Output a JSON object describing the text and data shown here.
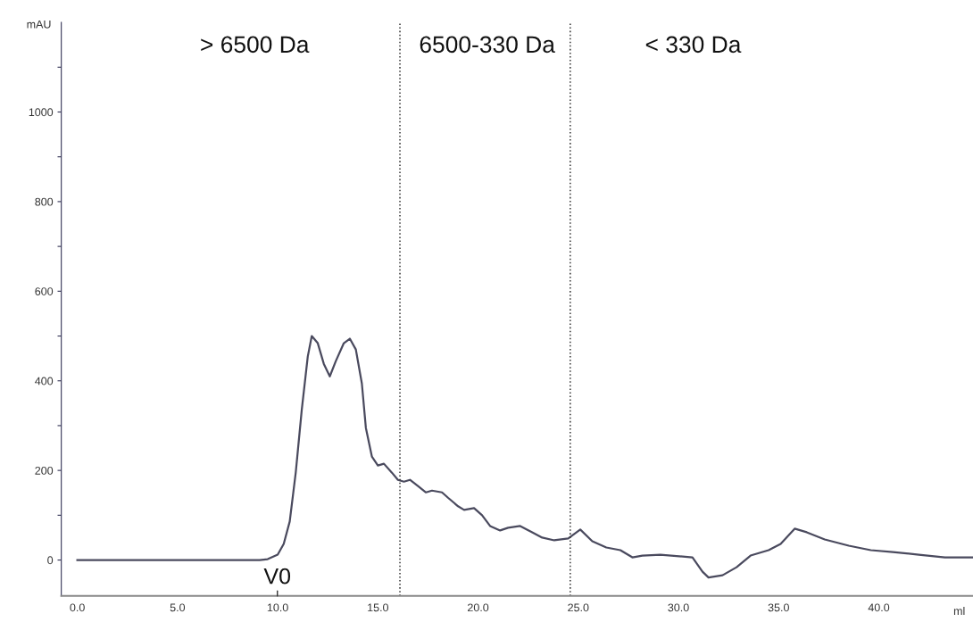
{
  "chart_data": {
    "type": "line",
    "xlabel": "ml",
    "ylabel": "mAU",
    "xlim": [
      -0.8,
      44.7
    ],
    "ylim": [
      -80,
      1200
    ],
    "xticks": [
      {
        "value": 0,
        "label": "0.0"
      },
      {
        "value": 5,
        "label": "5.0"
      },
      {
        "value": 10,
        "label": "10.0"
      },
      {
        "value": 15,
        "label": "15.0"
      },
      {
        "value": 20,
        "label": "20.0"
      },
      {
        "value": 25,
        "label": "25.0"
      },
      {
        "value": 30,
        "label": "30.0"
      },
      {
        "value": 35,
        "label": "35.0"
      },
      {
        "value": 40,
        "label": "40.0"
      }
    ],
    "yticks": [
      0,
      {
        "value": 100,
        "label": null
      },
      200,
      {
        "value": 300,
        "label": null
      },
      400,
      {
        "value": 500,
        "label": null
      },
      600,
      {
        "value": 700,
        "label": null
      },
      800,
      {
        "value": 900,
        "label": null
      },
      1000,
      {
        "value": 1100,
        "label": null
      }
    ],
    "grid": false,
    "legend": false,
    "marker": "none",
    "line_style": "solid",
    "series": [
      {
        "color": "#4a4a5e",
        "x": [
          0,
          9.1,
          9.5,
          10.0,
          10.3,
          10.6,
          10.9,
          11.2,
          11.5,
          11.7,
          12.0,
          12.3,
          12.6,
          12.9,
          13.3,
          13.6,
          13.9,
          14.2,
          14.4,
          14.7,
          15.0,
          15.3,
          15.7,
          16.0,
          16.3,
          16.6,
          17.0,
          17.4,
          17.7,
          18.2,
          18.5,
          19.0,
          19.3,
          19.8,
          20.2,
          20.6,
          21.1,
          21.5,
          22.1,
          22.7,
          23.2,
          23.8,
          24.5,
          25.1,
          25.7,
          26.4,
          27.1,
          27.7,
          28.2,
          29.1,
          30.7,
          31.2,
          31.5,
          32.2,
          32.9,
          33.6,
          34.5,
          35.1,
          35.8,
          36.4,
          37.3,
          38.5,
          39.6,
          40.7,
          42.0,
          43.3,
          44.7
        ],
        "values": [
          0,
          0,
          2,
          12,
          36,
          86,
          195,
          335,
          454,
          500,
          484,
          438,
          410,
          444,
          484,
          494,
          470,
          394,
          295,
          231,
          211,
          215,
          195,
          179,
          175,
          179,
          165,
          151,
          155,
          151,
          139,
          120,
          112,
          116,
          100,
          76,
          66,
          72,
          76,
          62,
          50,
          44,
          48,
          68,
          42,
          28,
          22,
          6,
          10,
          12,
          6,
          -26,
          -39,
          -34,
          -16,
          10,
          22,
          36,
          70,
          62,
          46,
          32,
          22,
          18,
          12,
          6,
          6
        ]
      }
    ],
    "ref_lines": [
      {
        "axis": "x",
        "value": 16.1,
        "color": "#333333",
        "line_style": "dotted"
      },
      {
        "axis": "x",
        "value": 24.6,
        "color": "#333333",
        "line_style": "dotted"
      }
    ],
    "annotations": [
      "> 6500 Da",
      "6500-330 Da",
      "< 330 Da",
      "V0"
    ]
  }
}
